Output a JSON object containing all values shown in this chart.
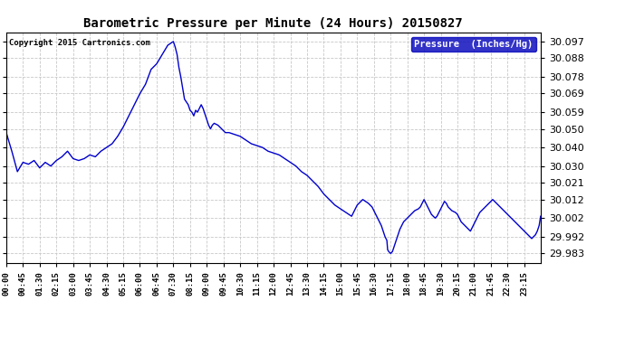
{
  "title": "Barometric Pressure per Minute (24 Hours) 20150827",
  "copyright": "Copyright 2015 Cartronics.com",
  "legend_label": "Pressure  (Inches/Hg)",
  "background_color": "#ffffff",
  "plot_bg_color": "#ffffff",
  "line_color": "#0000cc",
  "grid_color": "#c8c8c8",
  "yticks": [
    29.983,
    29.992,
    30.002,
    30.012,
    30.021,
    30.03,
    30.04,
    30.05,
    30.059,
    30.069,
    30.078,
    30.088,
    30.097
  ],
  "ylim": [
    29.978,
    30.102
  ],
  "xtick_labels": [
    "00:00",
    "00:45",
    "01:30",
    "02:15",
    "03:00",
    "03:45",
    "04:30",
    "05:15",
    "06:00",
    "06:45",
    "07:30",
    "08:15",
    "09:00",
    "09:45",
    "10:30",
    "11:15",
    "12:00",
    "12:45",
    "13:30",
    "14:15",
    "15:00",
    "15:45",
    "16:30",
    "17:15",
    "18:00",
    "18:45",
    "19:30",
    "20:15",
    "21:00",
    "21:45",
    "22:30",
    "23:15"
  ],
  "key_points": [
    [
      0,
      30.048
    ],
    [
      15,
      30.038
    ],
    [
      30,
      30.027
    ],
    [
      45,
      30.032
    ],
    [
      60,
      30.031
    ],
    [
      75,
      30.033
    ],
    [
      90,
      30.029
    ],
    [
      105,
      30.032
    ],
    [
      120,
      30.03
    ],
    [
      135,
      30.033
    ],
    [
      150,
      30.035
    ],
    [
      165,
      30.038
    ],
    [
      180,
      30.034
    ],
    [
      195,
      30.033
    ],
    [
      210,
      30.034
    ],
    [
      225,
      30.036
    ],
    [
      240,
      30.035
    ],
    [
      255,
      30.038
    ],
    [
      270,
      30.04
    ],
    [
      285,
      30.042
    ],
    [
      300,
      30.046
    ],
    [
      315,
      30.051
    ],
    [
      330,
      30.057
    ],
    [
      345,
      30.063
    ],
    [
      360,
      30.069
    ],
    [
      375,
      30.074
    ],
    [
      390,
      30.082
    ],
    [
      405,
      30.085
    ],
    [
      420,
      30.09
    ],
    [
      435,
      30.095
    ],
    [
      450,
      30.097
    ],
    [
      455,
      30.094
    ],
    [
      460,
      30.09
    ],
    [
      465,
      30.083
    ],
    [
      470,
      30.078
    ],
    [
      475,
      30.072
    ],
    [
      480,
      30.066
    ],
    [
      490,
      30.063
    ],
    [
      495,
      30.06
    ],
    [
      500,
      30.059
    ],
    [
      505,
      30.057
    ],
    [
      510,
      30.06
    ],
    [
      515,
      30.059
    ],
    [
      520,
      30.061
    ],
    [
      525,
      30.063
    ],
    [
      530,
      30.061
    ],
    [
      535,
      30.058
    ],
    [
      540,
      30.055
    ],
    [
      545,
      30.052
    ],
    [
      550,
      30.05
    ],
    [
      555,
      30.052
    ],
    [
      560,
      30.053
    ],
    [
      570,
      30.052
    ],
    [
      580,
      30.05
    ],
    [
      590,
      30.048
    ],
    [
      600,
      30.048
    ],
    [
      615,
      30.047
    ],
    [
      630,
      30.046
    ],
    [
      645,
      30.044
    ],
    [
      660,
      30.042
    ],
    [
      675,
      30.041
    ],
    [
      690,
      30.04
    ],
    [
      705,
      30.038
    ],
    [
      720,
      30.037
    ],
    [
      735,
      30.036
    ],
    [
      750,
      30.034
    ],
    [
      765,
      30.032
    ],
    [
      780,
      30.03
    ],
    [
      795,
      30.027
    ],
    [
      810,
      30.025
    ],
    [
      825,
      30.022
    ],
    [
      840,
      30.019
    ],
    [
      855,
      30.015
    ],
    [
      870,
      30.012
    ],
    [
      885,
      30.009
    ],
    [
      900,
      30.007
    ],
    [
      915,
      30.005
    ],
    [
      930,
      30.003
    ],
    [
      945,
      30.009
    ],
    [
      960,
      30.012
    ],
    [
      975,
      30.01
    ],
    [
      985,
      30.008
    ],
    [
      990,
      30.006
    ],
    [
      995,
      30.004
    ],
    [
      1000,
      30.002
    ],
    [
      1005,
      30.0
    ],
    [
      1010,
      29.998
    ],
    [
      1015,
      29.995
    ],
    [
      1020,
      29.992
    ],
    [
      1025,
      29.99
    ],
    [
      1027,
      29.985
    ],
    [
      1030,
      29.984
    ],
    [
      1035,
      29.983
    ],
    [
      1040,
      29.984
    ],
    [
      1045,
      29.987
    ],
    [
      1050,
      29.99
    ],
    [
      1055,
      29.993
    ],
    [
      1060,
      29.996
    ],
    [
      1065,
      29.998
    ],
    [
      1070,
      30.0
    ],
    [
      1075,
      30.001
    ],
    [
      1080,
      30.002
    ],
    [
      1085,
      30.003
    ],
    [
      1090,
      30.004
    ],
    [
      1095,
      30.005
    ],
    [
      1100,
      30.006
    ],
    [
      1110,
      30.007
    ],
    [
      1115,
      30.008
    ],
    [
      1120,
      30.01
    ],
    [
      1125,
      30.012
    ],
    [
      1130,
      30.01
    ],
    [
      1135,
      30.008
    ],
    [
      1140,
      30.006
    ],
    [
      1145,
      30.004
    ],
    [
      1150,
      30.003
    ],
    [
      1155,
      30.002
    ],
    [
      1160,
      30.003
    ],
    [
      1165,
      30.005
    ],
    [
      1170,
      30.007
    ],
    [
      1175,
      30.009
    ],
    [
      1180,
      30.011
    ],
    [
      1185,
      30.01
    ],
    [
      1190,
      30.008
    ],
    [
      1195,
      30.007
    ],
    [
      1200,
      30.006
    ],
    [
      1210,
      30.005
    ],
    [
      1215,
      30.004
    ],
    [
      1220,
      30.002
    ],
    [
      1225,
      30.0
    ],
    [
      1230,
      29.999
    ],
    [
      1235,
      29.998
    ],
    [
      1240,
      29.997
    ],
    [
      1245,
      29.996
    ],
    [
      1250,
      29.995
    ],
    [
      1255,
      29.997
    ],
    [
      1260,
      29.999
    ],
    [
      1265,
      30.001
    ],
    [
      1270,
      30.003
    ],
    [
      1275,
      30.005
    ],
    [
      1280,
      30.006
    ],
    [
      1285,
      30.007
    ],
    [
      1290,
      30.008
    ],
    [
      1295,
      30.009
    ],
    [
      1300,
      30.01
    ],
    [
      1305,
      30.011
    ],
    [
      1310,
      30.012
    ],
    [
      1315,
      30.011
    ],
    [
      1320,
      30.01
    ],
    [
      1325,
      30.009
    ],
    [
      1330,
      30.008
    ],
    [
      1335,
      30.007
    ],
    [
      1340,
      30.006
    ],
    [
      1345,
      30.005
    ],
    [
      1350,
      30.004
    ],
    [
      1355,
      30.003
    ],
    [
      1360,
      30.002
    ],
    [
      1365,
      30.001
    ],
    [
      1370,
      30.0
    ],
    [
      1375,
      29.999
    ],
    [
      1380,
      29.998
    ],
    [
      1385,
      29.997
    ],
    [
      1390,
      29.996
    ],
    [
      1395,
      29.995
    ],
    [
      1400,
      29.994
    ],
    [
      1405,
      29.993
    ],
    [
      1410,
      29.992
    ],
    [
      1415,
      29.991
    ],
    [
      1420,
      29.992
    ],
    [
      1425,
      29.993
    ],
    [
      1430,
      29.995
    ],
    [
      1435,
      29.998
    ],
    [
      1439,
      30.003
    ]
  ]
}
